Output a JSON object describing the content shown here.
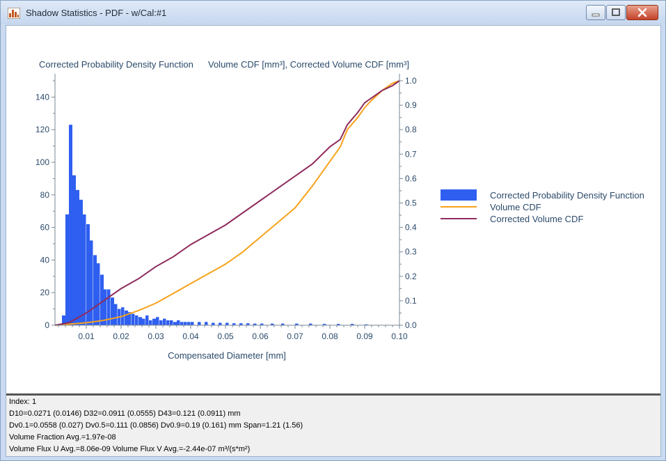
{
  "window": {
    "title": "Shadow Statistics - PDF - w/Cal:#1",
    "buttons": {
      "minimize": "minimize",
      "maximize": "maximize",
      "close": "close"
    }
  },
  "colors": {
    "pdf": "#2f5ff0",
    "volume_cdf": "#f7a21b",
    "corrected_volume_cdf": "#8e2b5c",
    "axis_text": "#2b4a6b"
  },
  "chart_data": {
    "type": "bar",
    "left_axis_title": "Corrected Probability Density Function",
    "right_axis_title": "Volume CDF [mm³], Corrected Volume CDF [mm³]",
    "xlabel": "Compensated Diameter [mm]",
    "xlim": [
      0.001,
      0.1
    ],
    "ylim_left": [
      0,
      150
    ],
    "ylim_right": [
      0,
      1.0
    ],
    "x_ticks": [
      "0.01",
      "0.02",
      "0.03",
      "0.04",
      "0.05",
      "0.06",
      "0.07",
      "0.08",
      "0.09",
      "0.10"
    ],
    "x_tick_values": [
      0.01,
      0.02,
      0.03,
      0.04,
      0.05,
      0.06,
      0.07,
      0.08,
      0.09,
      0.1
    ],
    "y_left_ticks": [
      "0",
      "20",
      "40",
      "60",
      "80",
      "100",
      "120",
      "140"
    ],
    "y_left_tick_values": [
      0,
      20,
      40,
      60,
      80,
      100,
      120,
      140
    ],
    "y_right_ticks": [
      "0.0",
      "0.1",
      "0.2",
      "0.3",
      "0.4",
      "0.5",
      "0.6",
      "0.7",
      "0.8",
      "0.9",
      "1.0"
    ],
    "y_right_tick_values": [
      0.0,
      0.1,
      0.2,
      0.3,
      0.4,
      0.5,
      0.6,
      0.7,
      0.8,
      0.9,
      1.0
    ],
    "bin_width": 0.001,
    "legend": [
      {
        "label": "Corrected Probability Density Function",
        "kind": "bar"
      },
      {
        "label": "Volume CDF",
        "kind": "line"
      },
      {
        "label": "Corrected Volume CDF",
        "kind": "line"
      }
    ],
    "histogram": {
      "name": "Corrected Probability Density Function",
      "bin_start": [
        0.003,
        0.004,
        0.005,
        0.006,
        0.007,
        0.008,
        0.009,
        0.01,
        0.011,
        0.012,
        0.013,
        0.014,
        0.015,
        0.016,
        0.017,
        0.018,
        0.019,
        0.02,
        0.021,
        0.022,
        0.023,
        0.024,
        0.025,
        0.026,
        0.027,
        0.028,
        0.029,
        0.03,
        0.031,
        0.032,
        0.033,
        0.034,
        0.035,
        0.036,
        0.037,
        0.038,
        0.039,
        0.04,
        0.042,
        0.044,
        0.046,
        0.048,
        0.05,
        0.052,
        0.054,
        0.056,
        0.058,
        0.06,
        0.063,
        0.066,
        0.07,
        0.074,
        0.078,
        0.082,
        0.086,
        0.09
      ],
      "values": [
        6,
        68,
        123,
        92,
        83,
        77,
        68,
        62,
        52,
        43,
        38,
        31,
        22,
        22,
        17,
        13,
        10,
        11,
        9,
        8,
        7,
        6,
        5,
        4,
        6,
        3,
        4,
        5,
        3,
        4,
        3,
        3,
        2,
        3,
        2,
        2,
        2,
        2,
        2,
        2,
        1.5,
        1.5,
        1.5,
        1.2,
        1.2,
        1.2,
        1,
        1,
        1,
        1,
        1,
        1,
        0.8,
        0.8,
        0.8,
        0.5
      ]
    },
    "series": [
      {
        "name": "Volume CDF",
        "x": [
          0.001,
          0.01,
          0.015,
          0.02,
          0.025,
          0.03,
          0.035,
          0.04,
          0.045,
          0.05,
          0.055,
          0.06,
          0.065,
          0.07,
          0.075,
          0.08,
          0.083,
          0.085,
          0.088,
          0.09,
          0.092,
          0.095,
          0.098,
          0.1
        ],
        "values": [
          0.0,
          0.01,
          0.02,
          0.035,
          0.06,
          0.09,
          0.13,
          0.17,
          0.21,
          0.25,
          0.3,
          0.36,
          0.42,
          0.48,
          0.57,
          0.67,
          0.73,
          0.8,
          0.85,
          0.89,
          0.92,
          0.96,
          0.99,
          1.0
        ]
      },
      {
        "name": "Corrected Volume CDF",
        "x": [
          0.001,
          0.005,
          0.01,
          0.015,
          0.02,
          0.025,
          0.03,
          0.035,
          0.04,
          0.045,
          0.05,
          0.055,
          0.06,
          0.065,
          0.07,
          0.075,
          0.08,
          0.083,
          0.085,
          0.088,
          0.09,
          0.093,
          0.095,
          0.098,
          0.1
        ],
        "values": [
          0.0,
          0.01,
          0.05,
          0.1,
          0.15,
          0.19,
          0.24,
          0.28,
          0.33,
          0.37,
          0.41,
          0.46,
          0.51,
          0.56,
          0.61,
          0.66,
          0.73,
          0.76,
          0.82,
          0.87,
          0.91,
          0.94,
          0.96,
          0.98,
          1.0
        ]
      }
    ]
  },
  "stats": {
    "line1": "Index: 1",
    "line2": "D10=0.0271 (0.0146)  D32=0.0911 (0.0555)  D43=0.121 (0.0911) mm",
    "line3": "Dv0.1=0.0558 (0.027)  Dv0.5=0.111 (0.0856)  Dv0.9=0.19 (0.161) mm  Span=1.21 (1.56)",
    "line4": "Volume Fraction Avg.=1.97e-08",
    "line5": "Volume Flux U Avg.=8.06e-09  Volume Flux V Avg.=-2.44e-07 m³/(s*m²)"
  }
}
